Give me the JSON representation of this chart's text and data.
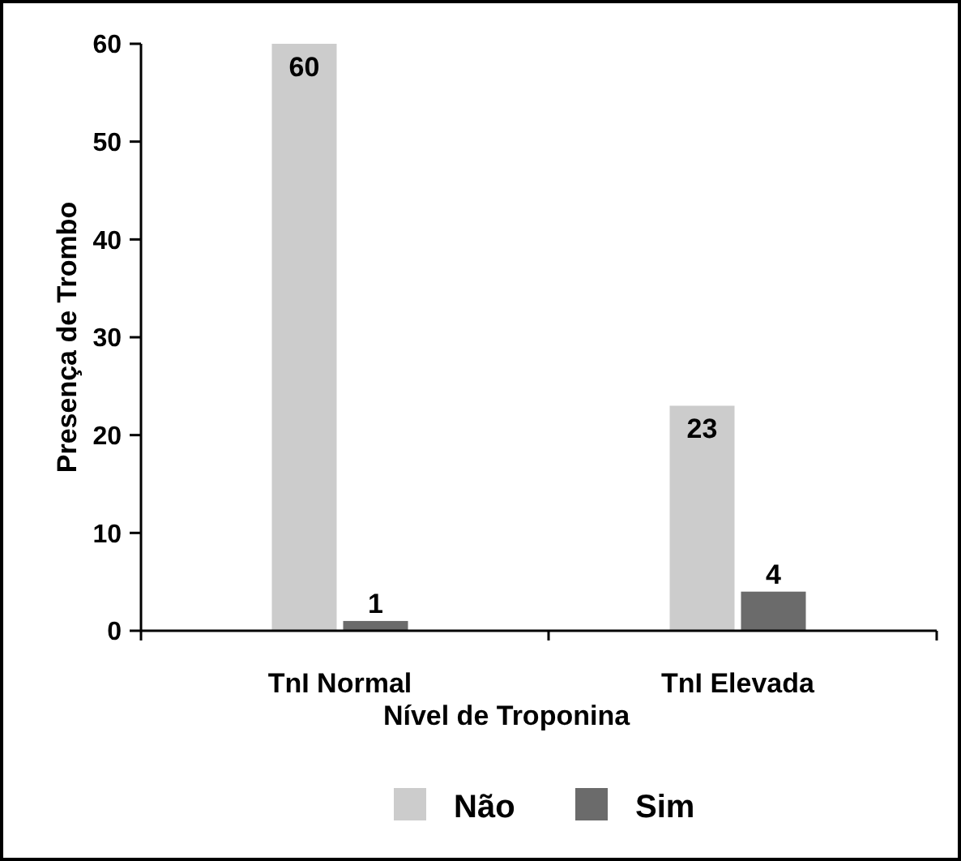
{
  "chart_data": {
    "type": "bar",
    "xlabel": "Nível de Troponina",
    "ylabel": "Presença de Trombo",
    "categories": [
      "TnI Normal",
      "TnI Elevada"
    ],
    "series": [
      {
        "name": "Não",
        "color": "#cccccc",
        "values": [
          60,
          23
        ]
      },
      {
        "name": "Sim",
        "color": "#6b6b6b",
        "values": [
          1,
          4
        ]
      }
    ],
    "ylim": [
      0,
      60
    ],
    "yticks": [
      0,
      10,
      20,
      30,
      40,
      50,
      60
    ],
    "grid": false,
    "legend": "bottom",
    "data_labels": true
  }
}
